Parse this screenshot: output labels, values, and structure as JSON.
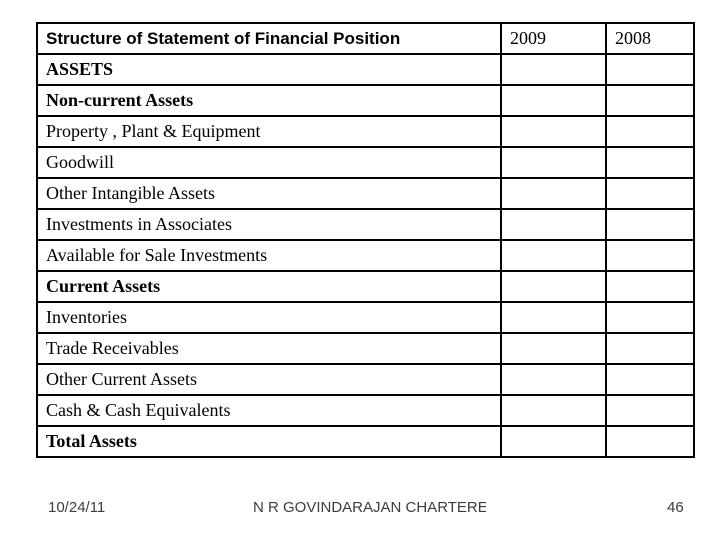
{
  "table": {
    "header": {
      "title": "Structure of Statement of Financial Position",
      "col_2009": "2009",
      "col_2008": "2008"
    },
    "rows": [
      {
        "label": "ASSETS",
        "bold": true
      },
      {
        "label": "Non-current Assets",
        "bold": true
      },
      {
        "label": "Property , Plant & Equipment",
        "bold": false
      },
      {
        "label": "Goodwill",
        "bold": false
      },
      {
        "label": "Other Intangible Assets",
        "bold": false
      },
      {
        "label": "Investments in Associates",
        "bold": false
      },
      {
        "label": "Available for Sale Investments",
        "bold": false
      },
      {
        "label": "Current Assets",
        "bold": true
      },
      {
        "label": "Inventories",
        "bold": false
      },
      {
        "label": "Trade Receivables",
        "bold": false
      },
      {
        "label": "Other Current Assets",
        "bold": false
      },
      {
        "label": "Cash & Cash Equivalents",
        "bold": false
      },
      {
        "label": "Total Assets",
        "bold": true
      }
    ]
  },
  "footer": {
    "date": "10/24/11",
    "center_text": "N R GOVINDARAJAN CHARTERED",
    "page_number": "46"
  },
  "colors": {
    "text": "#000000",
    "border": "#000000",
    "footer_text": "#3c3c3c",
    "background": "#ffffff"
  }
}
